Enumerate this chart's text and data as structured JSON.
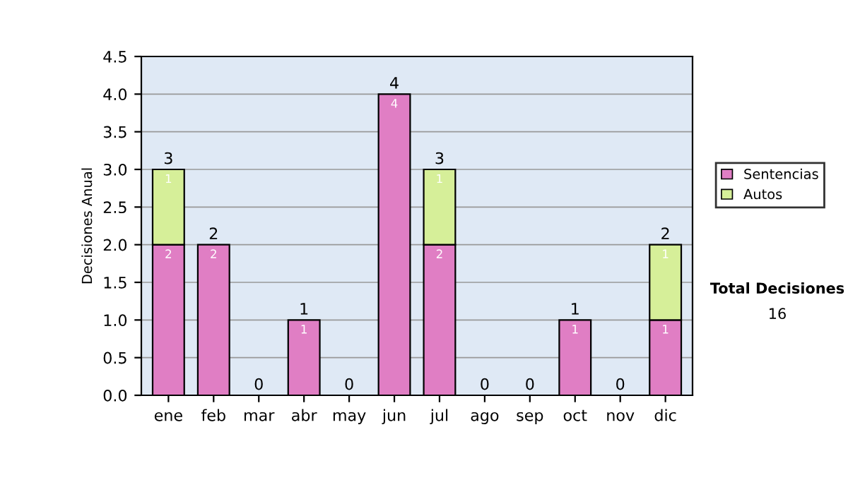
{
  "chart_data": {
    "type": "bar",
    "stacked": true,
    "ylabel": "Decisiones Anual",
    "categories": [
      "ene",
      "feb",
      "mar",
      "abr",
      "may",
      "jun",
      "jul",
      "ago",
      "sep",
      "oct",
      "nov",
      "dic"
    ],
    "series": [
      {
        "name": "Sentencias",
        "color": "#e07ec4",
        "values": [
          2,
          2,
          0,
          1,
          0,
          4,
          2,
          0,
          0,
          1,
          0,
          1
        ],
        "value_labels": [
          "2",
          "2",
          null,
          "1",
          null,
          "4",
          "2",
          null,
          null,
          "1",
          null,
          "1"
        ]
      },
      {
        "name": "Autos",
        "color": "#d6ef99",
        "values": [
          1,
          0,
          0,
          0,
          0,
          0,
          1,
          0,
          0,
          0,
          0,
          1
        ],
        "value_labels": [
          "1",
          null,
          null,
          null,
          null,
          null,
          "1",
          null,
          null,
          null,
          null,
          "1"
        ]
      }
    ],
    "totals": [
      "3",
      "2",
      "0",
      "1",
      "0",
      "4",
      "3",
      "0",
      "0",
      "1",
      "0",
      "2"
    ],
    "ylim": [
      0,
      4.5
    ],
    "yticks": [
      {
        "value": 0,
        "label": "0.0"
      },
      {
        "value": 0.5,
        "label": "0.5"
      },
      {
        "value": 1,
        "label": "1.0"
      },
      {
        "value": 1.5,
        "label": "1.5"
      },
      {
        "value": 2,
        "label": "2.0"
      },
      {
        "value": 2.5,
        "label": "2.5"
      },
      {
        "value": 3,
        "label": "3.0"
      },
      {
        "value": 3.5,
        "label": "3.5"
      },
      {
        "value": 4,
        "label": "4.0"
      },
      {
        "value": 4.5,
        "label": "4.5"
      }
    ],
    "grid": "y",
    "legend": "right",
    "annotations": [
      "Total Decisiones",
      "16"
    ]
  }
}
